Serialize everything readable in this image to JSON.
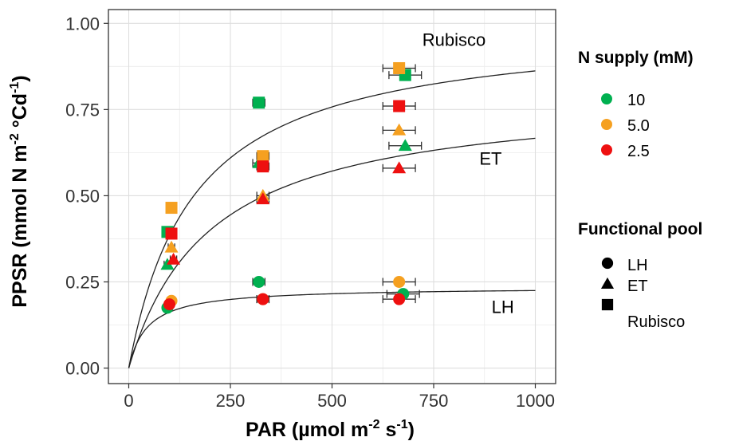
{
  "chart_data": {
    "type": "scatter",
    "title": "",
    "xlabel": "PAR (µmol m",
    "xlabel_sup1": "-2",
    "xlabel_mid": " s",
    "xlabel_sup2": "-1",
    "xlabel_end": ")",
    "ylabel": "PPSR (mmol N m",
    "ylabel_sup1": "-2",
    "ylabel_mid": " °Cd",
    "ylabel_sup2": "-1",
    "ylabel_end": ")",
    "xlim": [
      -50,
      1050
    ],
    "ylim": [
      -0.045,
      1.04
    ],
    "x_ticks": [
      {
        "value": 0,
        "label": "0"
      },
      {
        "value": 250,
        "label": "250"
      },
      {
        "value": 500,
        "label": "500"
      },
      {
        "value": 750,
        "label": "750"
      },
      {
        "value": 1000,
        "label": "1000"
      }
    ],
    "y_ticks": [
      {
        "value": 0,
        "label": "0.00"
      },
      {
        "value": 0.25,
        "label": "0.25"
      },
      {
        "value": 0.5,
        "label": "0.50"
      },
      {
        "value": 0.75,
        "label": "0.75"
      },
      {
        "value": 1.0,
        "label": "1.00"
      }
    ],
    "grid": true,
    "fitted_curves": [
      {
        "label": "Rubisco",
        "label_x": 800,
        "label_y": 0.935,
        "pmax": 1.0,
        "k": 160
      },
      {
        "label": "ET",
        "label_x": 890,
        "label_y": 0.59,
        "pmax": 0.8,
        "k": 200
      },
      {
        "label": "LH",
        "label_x": 920,
        "label_y": 0.16,
        "pmax": 0.235,
        "k": 45
      }
    ],
    "legend_n_supply": {
      "title": "N supply (mM)",
      "entries": [
        {
          "label": "10",
          "color": "#00b050"
        },
        {
          "label": "5.0",
          "color": "#f5a020"
        },
        {
          "label": "2.5",
          "color": "#ee1010"
        }
      ]
    },
    "legend_pool": {
      "title": "Functional pool",
      "entries": [
        {
          "label": "LH",
          "shape": "circle"
        },
        {
          "label": "ET",
          "shape": "triangle"
        },
        {
          "label": "Rubisco",
          "shape": "square"
        }
      ]
    },
    "points": [
      {
        "x": 95,
        "y": 0.175,
        "pool": "LH",
        "supply": "10",
        "err": 8
      },
      {
        "x": 105,
        "y": 0.195,
        "pool": "LH",
        "supply": "5.0",
        "err": 8
      },
      {
        "x": 100,
        "y": 0.185,
        "pool": "LH",
        "supply": "2.5",
        "err": 8
      },
      {
        "x": 320,
        "y": 0.25,
        "pool": "LH",
        "supply": "10",
        "err": 15
      },
      {
        "x": 330,
        "y": 0.2,
        "pool": "LH",
        "supply": "5.0",
        "err": 15
      },
      {
        "x": 330,
        "y": 0.2,
        "pool": "LH",
        "supply": "2.5",
        "err": 15
      },
      {
        "x": 675,
        "y": 0.215,
        "pool": "LH",
        "supply": "10",
        "err": 40
      },
      {
        "x": 665,
        "y": 0.25,
        "pool": "LH",
        "supply": "5.0",
        "err": 40
      },
      {
        "x": 665,
        "y": 0.2,
        "pool": "LH",
        "supply": "2.5",
        "err": 40
      },
      {
        "x": 95,
        "y": 0.3,
        "pool": "ET",
        "supply": "10",
        "err": 8
      },
      {
        "x": 105,
        "y": 0.35,
        "pool": "ET",
        "supply": "5.0",
        "err": 8
      },
      {
        "x": 110,
        "y": 0.315,
        "pool": "ET",
        "supply": "2.5",
        "err": 8
      },
      {
        "x": 320,
        "y": 0.595,
        "pool": "ET",
        "supply": "10",
        "err": 15
      },
      {
        "x": 330,
        "y": 0.5,
        "pool": "ET",
        "supply": "5.0",
        "err": 15
      },
      {
        "x": 330,
        "y": 0.49,
        "pool": "ET",
        "supply": "2.5",
        "err": 15
      },
      {
        "x": 680,
        "y": 0.645,
        "pool": "ET",
        "supply": "10",
        "err": 40
      },
      {
        "x": 665,
        "y": 0.69,
        "pool": "ET",
        "supply": "5.0",
        "err": 40
      },
      {
        "x": 665,
        "y": 0.58,
        "pool": "ET",
        "supply": "2.5",
        "err": 40
      },
      {
        "x": 95,
        "y": 0.395,
        "pool": "Rubisco",
        "supply": "10",
        "err": 8
      },
      {
        "x": 105,
        "y": 0.465,
        "pool": "Rubisco",
        "supply": "5.0",
        "err": 8
      },
      {
        "x": 105,
        "y": 0.39,
        "pool": "Rubisco",
        "supply": "2.5",
        "err": 8
      },
      {
        "x": 320,
        "y": 0.77,
        "pool": "Rubisco",
        "supply": "10",
        "err": 15
      },
      {
        "x": 330,
        "y": 0.615,
        "pool": "Rubisco",
        "supply": "5.0",
        "err": 15
      },
      {
        "x": 330,
        "y": 0.585,
        "pool": "Rubisco",
        "supply": "2.5",
        "err": 15
      },
      {
        "x": 680,
        "y": 0.85,
        "pool": "Rubisco",
        "supply": "10",
        "err": 40
      },
      {
        "x": 665,
        "y": 0.87,
        "pool": "Rubisco",
        "supply": "5.0",
        "err": 40
      },
      {
        "x": 665,
        "y": 0.76,
        "pool": "Rubisco",
        "supply": "2.5",
        "err": 40
      }
    ]
  }
}
